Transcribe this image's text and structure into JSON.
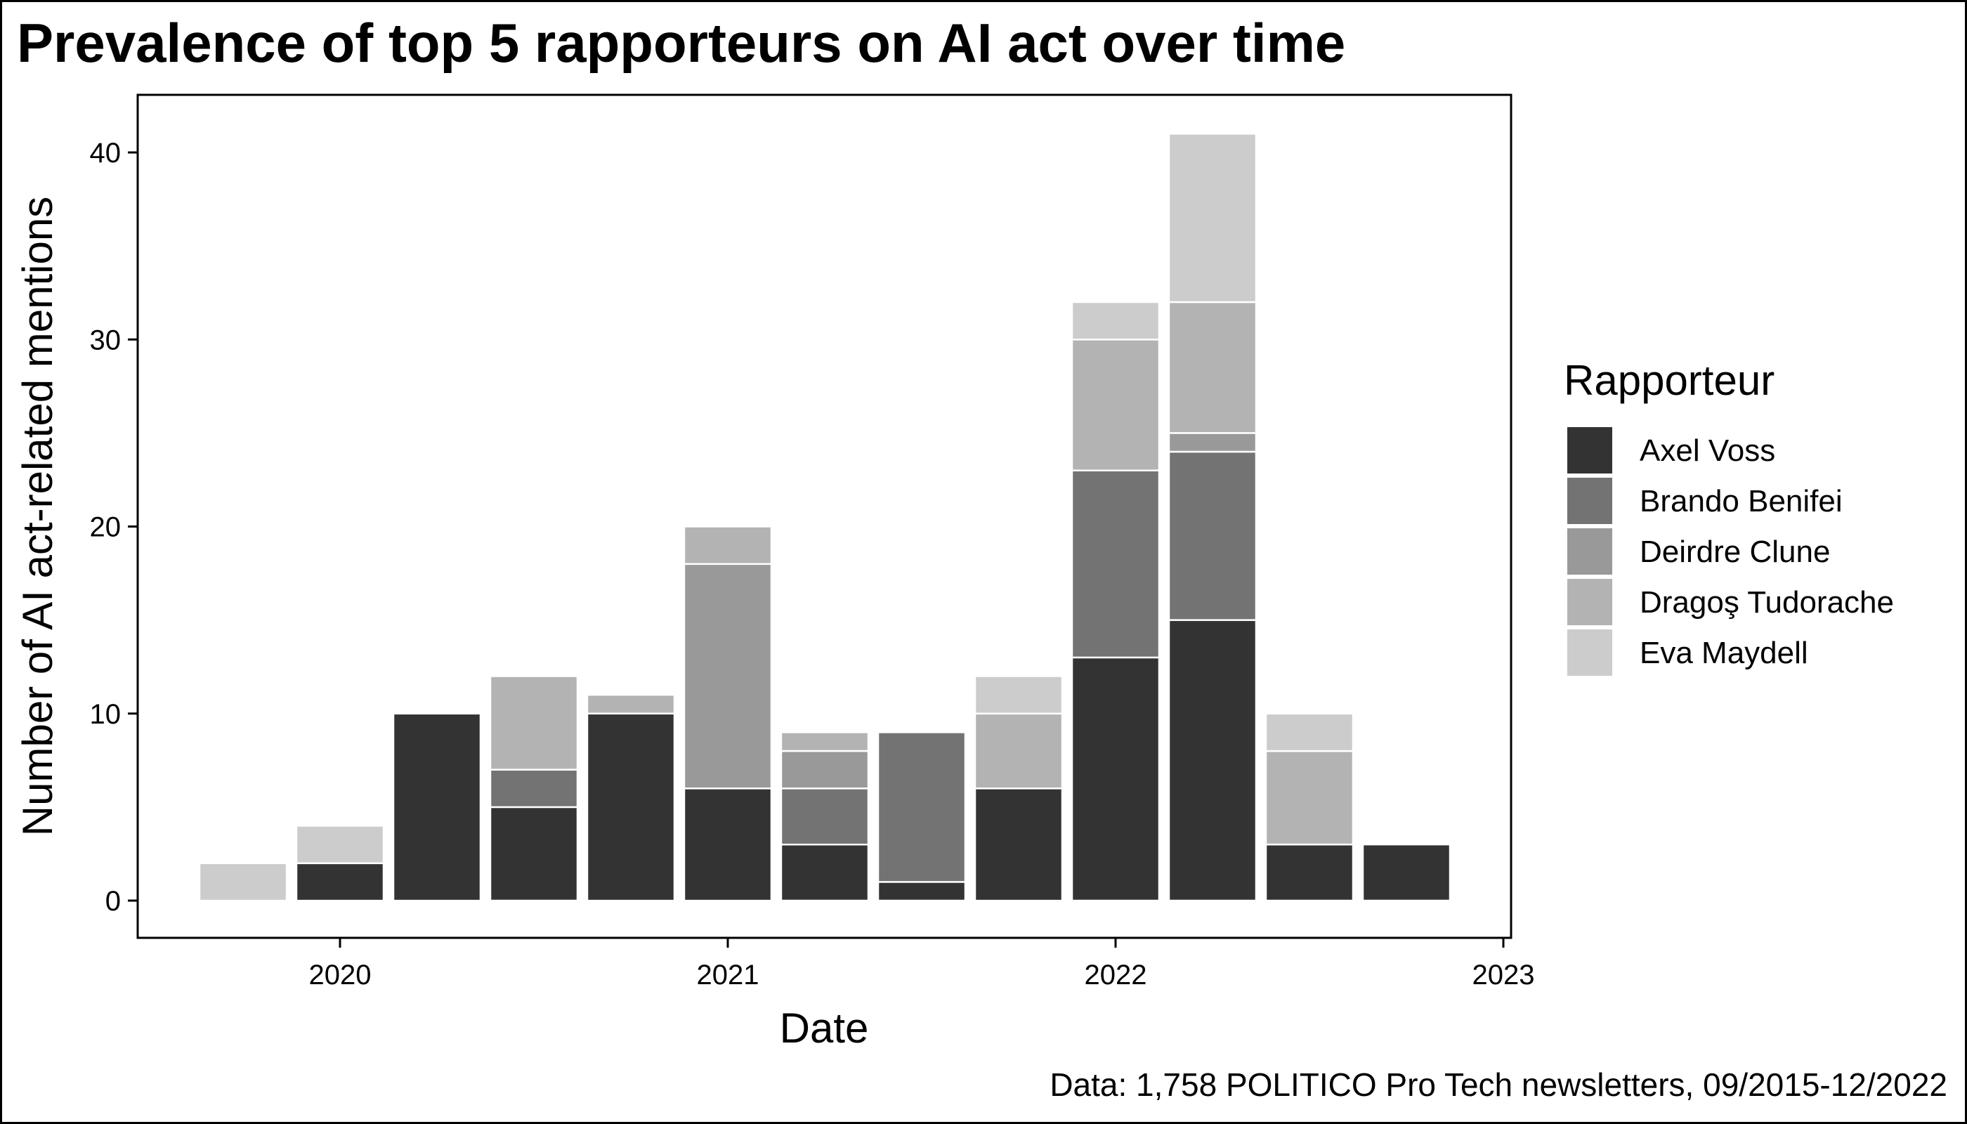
{
  "chart_data": {
    "type": "bar",
    "stacked": true,
    "title": "Prevalence of top 5 rapporteurs on AI act over time",
    "xlabel": "Date",
    "ylabel": "Number of AI act-related mentions",
    "caption": "Data: 1,758 POLITICO Pro Tech newsletters, 09/2015-12/2022",
    "xlim": [
      "2019-07",
      "2023-01"
    ],
    "ylim": [
      0,
      42
    ],
    "x_ticks": [
      "2020",
      "2021",
      "2022",
      "2023"
    ],
    "y_ticks": [
      0,
      10,
      20,
      30,
      40
    ],
    "grid": false,
    "legend": {
      "title": "Rapporteur",
      "position": "right"
    },
    "x": [
      "2019-Q4",
      "2020-Q1",
      "2020-Q2",
      "2020-Q3",
      "2020-Q4",
      "2021-Q1",
      "2021-Q2",
      "2021-Q3",
      "2021-Q4",
      "2022-Q1",
      "2022-Q2",
      "2022-Q3",
      "2022-Q4"
    ],
    "series": [
      {
        "name": "Axel Voss",
        "color": "#333333",
        "values": [
          0,
          2,
          10,
          5,
          10,
          6,
          3,
          1,
          6,
          13,
          15,
          3,
          3
        ]
      },
      {
        "name": "Brando Benifei",
        "color": "#737373",
        "values": [
          0,
          0,
          0,
          2,
          0,
          0,
          3,
          8,
          0,
          10,
          9,
          0,
          0
        ]
      },
      {
        "name": "Deirdre Clune",
        "color": "#999999",
        "values": [
          0,
          0,
          0,
          0,
          0,
          12,
          2,
          0,
          0,
          0,
          1,
          0,
          0
        ]
      },
      {
        "name": "Dragoş Tudorache",
        "color": "#b3b3b3",
        "values": [
          0,
          0,
          0,
          5,
          1,
          2,
          1,
          0,
          4,
          7,
          7,
          5,
          0
        ]
      },
      {
        "name": "Eva Maydell",
        "color": "#cccccc",
        "values": [
          2,
          2,
          0,
          0,
          0,
          0,
          0,
          0,
          2,
          2,
          9,
          2,
          0
        ]
      }
    ]
  }
}
